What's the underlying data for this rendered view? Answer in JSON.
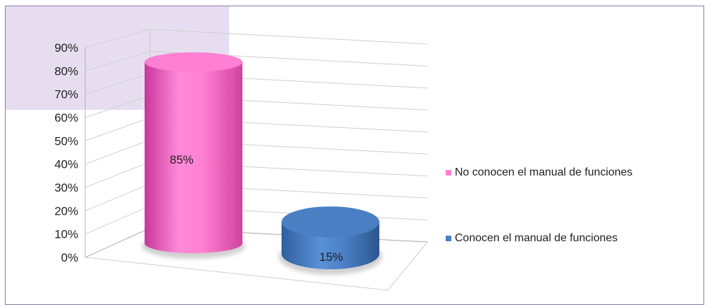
{
  "chart_data": {
    "type": "bar",
    "style": "3d-cylinder",
    "categories": [
      "No conocen el manual de funciones",
      "Conocen el manual de funciones"
    ],
    "values": [
      85,
      15
    ],
    "data_labels": [
      "85%",
      "15%"
    ],
    "colors": [
      "#ff7fd2",
      "#4a7fc4"
    ],
    "title": "",
    "xlabel": "",
    "ylabel": "",
    "ylim": [
      0,
      90
    ],
    "yticks": [
      "0%",
      "10%",
      "20%",
      "30%",
      "40%",
      "50%",
      "60%",
      "70%",
      "80%",
      "90%"
    ],
    "grid": true,
    "legend": {
      "position": "right",
      "entries": [
        "No conocen el manual de funciones",
        "Conocen el manual de funciones"
      ]
    },
    "background_accent": "#e6def0",
    "frame_color": "#8d77a8"
  }
}
